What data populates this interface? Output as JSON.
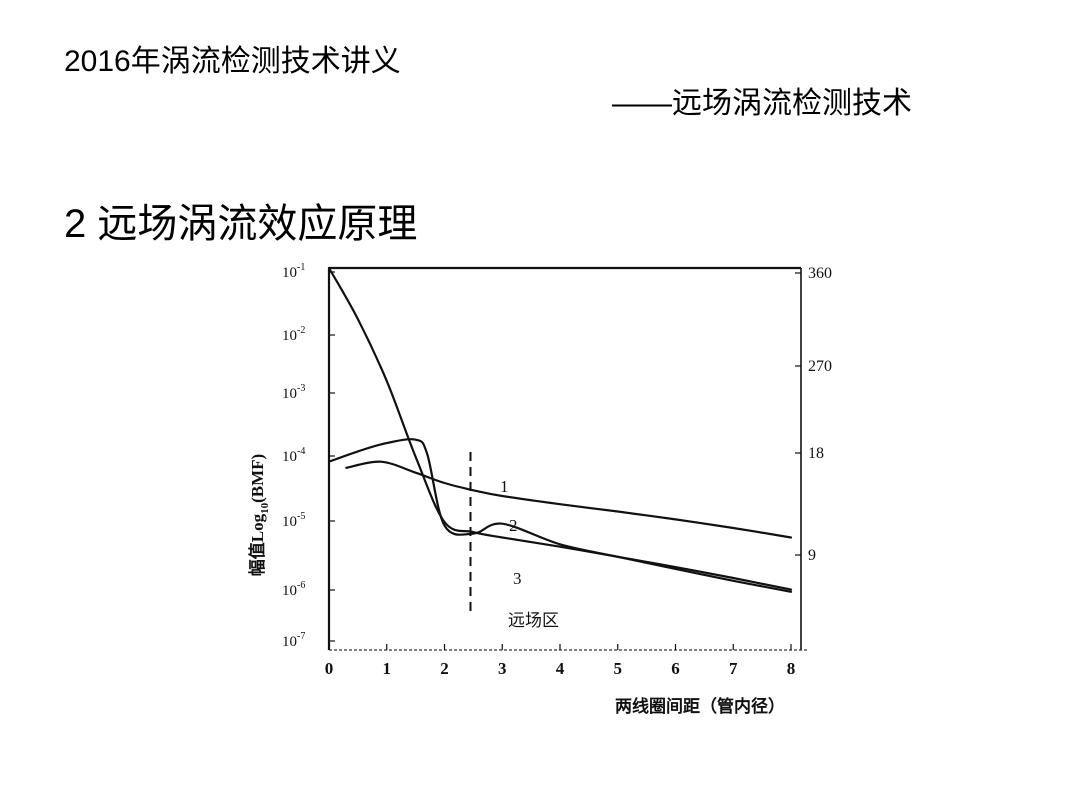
{
  "slide": {
    "title": "2016年涡流检测技术讲义",
    "subtitle": "——远场涡流检测技术",
    "heading": "2 远场涡流效应原理"
  },
  "chart_data": {
    "type": "line",
    "xlabel": "两线圈间距（管内径）",
    "ylabel_prefix": "幅值Log",
    "ylabel_sub": "10",
    "ylabel_suffix": "(BMF)",
    "x_ticks": [
      "0",
      "1",
      "2",
      "3",
      "4",
      "5",
      "6",
      "7",
      "8"
    ],
    "xlim": [
      0,
      8
    ],
    "y_scale": "log",
    "ylim": [
      1e-07,
      0.1
    ],
    "left_ticks": [
      {
        "base": "10",
        "exp": "-1",
        "value": 0.1
      },
      {
        "base": "10",
        "exp": "-2",
        "value": 0.01
      },
      {
        "base": "10",
        "exp": "-3",
        "value": 0.001
      },
      {
        "base": "10",
        "exp": "-4",
        "value": 0.0001
      },
      {
        "base": "10",
        "exp": "-5",
        "value": 1e-05
      },
      {
        "base": "10",
        "exp": "-6",
        "value": 1e-06
      },
      {
        "base": "10",
        "exp": "-7",
        "value": 1e-07
      }
    ],
    "right_ticks": [
      "360",
      "270",
      "18",
      "9"
    ],
    "far_field_boundary_x": 2.45,
    "annotation": "远场区",
    "series": [
      {
        "name": "1",
        "x": [
          0.0,
          0.5,
          1.0,
          1.5,
          2.0,
          2.5,
          3.0,
          4.0,
          5.0,
          6.0,
          7.0,
          8.0
        ],
        "y": [
          0.1,
          0.015,
          0.0015,
          9e-05,
          8e-06,
          5.5e-06,
          4.5e-06,
          3.2e-06,
          2.2e-06,
          1.5e-06,
          1e-06,
          6.5e-07
        ]
      },
      {
        "name": "2",
        "x": [
          0.0,
          0.5,
          1.0,
          1.5,
          1.7,
          2.0,
          2.5,
          3.0,
          4.0,
          5.0,
          6.0,
          7.0,
          8.0
        ],
        "y": [
          7.5e-05,
          0.00011,
          0.00015,
          0.00017,
          0.0001,
          7e-06,
          5.2e-06,
          7.5e-06,
          3.5e-06,
          2.2e-06,
          1.4e-06,
          9e-07,
          6e-07
        ]
      },
      {
        "name": "3",
        "x": [
          0.3,
          0.9,
          1.5,
          2.0,
          2.5,
          3.0,
          4.0,
          5.0,
          6.0,
          7.0,
          8.0
        ],
        "y": [
          6e-05,
          7.5e-05,
          5e-05,
          3.4e-05,
          2.6e-05,
          2.1e-05,
          1.55e-05,
          1.18e-05,
          8.8e-06,
          6.4e-06,
          4.5e-06
        ]
      }
    ]
  }
}
